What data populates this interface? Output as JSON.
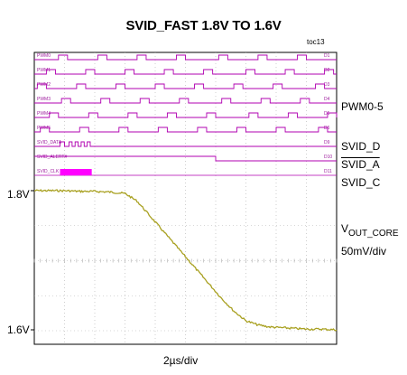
{
  "chart_data": {
    "type": "line",
    "title": "SVID_FAST 1.8V TO 1.6V",
    "figure_id": "toc13",
    "x_scale_label": "2µs/div",
    "x_divisions": 10,
    "digital_traces": [
      {
        "name": "PWM0",
        "ch": "D1",
        "transitions_div": [
          0.8,
          1.1,
          2.1,
          2.4,
          3.4,
          3.7,
          4.7,
          5.0,
          6.1,
          6.4,
          7.4,
          7.7,
          8.7,
          9.0
        ]
      },
      {
        "name": "PWM1",
        "ch": "D2",
        "transitions_div": [
          0.4,
          0.7,
          1.7,
          2.0,
          3.0,
          3.3,
          4.3,
          4.6,
          5.6,
          5.9,
          7.0,
          7.3,
          8.3,
          8.6,
          9.6,
          9.9
        ]
      },
      {
        "name": "PWM2",
        "ch": "D3",
        "transitions_div": [
          0.1,
          0.4,
          1.4,
          1.7,
          2.7,
          3.0,
          4.0,
          4.3,
          5.3,
          5.6,
          6.6,
          6.9,
          7.9,
          8.2,
          9.3,
          9.6
        ]
      },
      {
        "name": "PWM3",
        "ch": "D4",
        "transitions_div": [
          0.9,
          1.2,
          2.2,
          2.5,
          3.5,
          3.8,
          4.8,
          5.1,
          6.2,
          6.5,
          7.5,
          7.8,
          8.8,
          9.1
        ]
      },
      {
        "name": "PWM4",
        "ch": "D5",
        "transitions_div": [
          0.5,
          0.8,
          1.8,
          2.1,
          3.1,
          3.4,
          4.4,
          4.7,
          5.7,
          6.0,
          7.1,
          7.4,
          8.4,
          8.7,
          9.7,
          10.0
        ]
      },
      {
        "name": "PWM5",
        "ch": "D6",
        "transitions_div": [
          0.2,
          0.5,
          1.5,
          1.8,
          2.8,
          3.1,
          4.1,
          4.4,
          5.4,
          5.7,
          6.7,
          7.0,
          8.0,
          8.3,
          9.4,
          9.7
        ]
      },
      {
        "name": "SVID_DATA",
        "ch": "D9",
        "transitions_div": [
          0.85,
          1.0,
          1.15,
          1.25,
          1.35,
          1.45,
          1.55,
          1.65,
          1.75,
          1.85
        ]
      },
      {
        "name": "SVID_ALERT#",
        "ch": "D10",
        "initial": "high",
        "transitions_div": [
          6.0
        ]
      },
      {
        "name": "SVID_CLK",
        "ch": "D11",
        "burst_div": [
          0.85,
          1.9
        ]
      }
    ],
    "analog": {
      "name": "VOUT_CORE",
      "scale": "50mV/div",
      "ylabels": [
        "1.8V",
        "1.6V"
      ],
      "x_div": [
        0,
        0.5,
        1.0,
        1.5,
        2.0,
        2.5,
        3.0,
        3.4,
        3.8,
        4.2,
        4.6,
        5.0,
        5.4,
        5.8,
        6.2,
        6.6,
        7.0,
        7.4,
        7.8,
        8.2,
        8.6,
        9.0,
        9.5,
        10.0
      ],
      "y_volts": [
        1.8,
        1.8,
        1.8,
        1.799,
        1.799,
        1.798,
        1.796,
        1.785,
        1.765,
        1.745,
        1.725,
        1.705,
        1.685,
        1.665,
        1.645,
        1.627,
        1.613,
        1.607,
        1.604,
        1.603,
        1.602,
        1.601,
        1.601,
        1.6
      ]
    },
    "right_labels": [
      "PWM0-5",
      "SVID_D",
      "SVID_A",
      "SVID_C",
      "V",
      "OUT_CORE",
      "50mV/div"
    ]
  }
}
